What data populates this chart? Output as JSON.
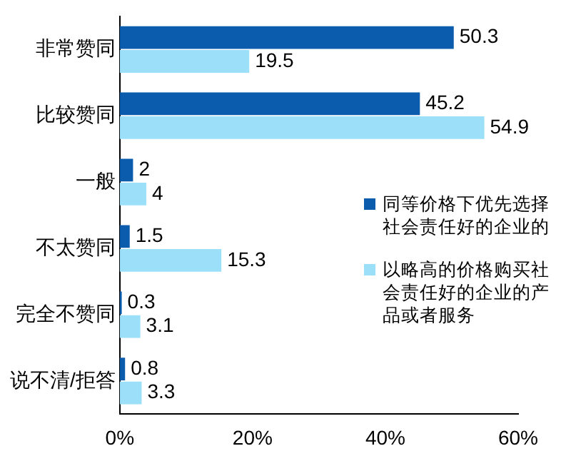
{
  "chart_data": {
    "type": "bar",
    "orientation": "horizontal",
    "categories": [
      "非常赞同",
      "比较赞同",
      "一般",
      "不太赞同",
      "完全不赞同",
      "说不清/拒答"
    ],
    "series": [
      {
        "name": "同等价格下优先选择社会责任好的企业的",
        "color": "#0b5cad",
        "values": [
          50.3,
          45.2,
          2,
          1.5,
          0.3,
          0.8
        ]
      },
      {
        "name": "以略高的价格购买社会责任好的企业的产品或者服务",
        "color": "#9be0f8",
        "values": [
          19.5,
          54.9,
          4,
          15.3,
          3.1,
          3.3
        ]
      }
    ],
    "xlim": [
      0,
      60
    ],
    "xticks": [
      {
        "value": 0,
        "label": "0%"
      },
      {
        "value": 20,
        "label": "20%"
      },
      {
        "value": 40,
        "label": "40%"
      },
      {
        "value": 60,
        "label": "60%"
      }
    ],
    "data_labels": true,
    "grid": false,
    "legend": "right"
  }
}
